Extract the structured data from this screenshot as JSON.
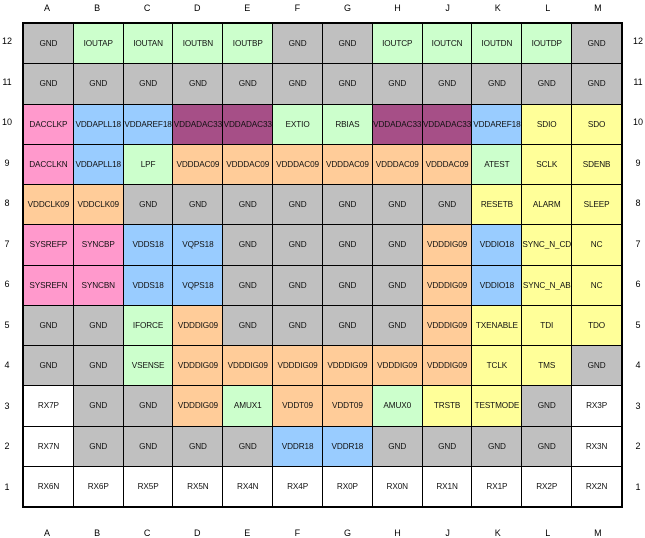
{
  "colors": {
    "gnd": "#c0c0c0",
    "green": "#ccffcc",
    "pink": "#ff99cc",
    "blue": "#99ccff",
    "purple": "#a64f87",
    "orange": "#ffcc99",
    "yellow": "#ffff99",
    "white": "#ffffff"
  },
  "columns": [
    "A",
    "B",
    "C",
    "D",
    "E",
    "F",
    "G",
    "H",
    "J",
    "K",
    "L",
    "M"
  ],
  "rows": [
    {
      "label": "12",
      "cells": [
        [
          "GND",
          "gnd"
        ],
        [
          "IOUTAP",
          "green"
        ],
        [
          "IOUTAN",
          "green"
        ],
        [
          "IOUTBN",
          "green"
        ],
        [
          "IOUTBP",
          "green"
        ],
        [
          "GND",
          "gnd"
        ],
        [
          "GND",
          "gnd"
        ],
        [
          "IOUTCP",
          "green"
        ],
        [
          "IOUTCN",
          "green"
        ],
        [
          "IOUTDN",
          "green"
        ],
        [
          "IOUTDP",
          "green"
        ],
        [
          "GND",
          "gnd"
        ]
      ]
    },
    {
      "label": "11",
      "cells": [
        [
          "GND",
          "gnd"
        ],
        [
          "GND",
          "gnd"
        ],
        [
          "GND",
          "gnd"
        ],
        [
          "GND",
          "gnd"
        ],
        [
          "GND",
          "gnd"
        ],
        [
          "GND",
          "gnd"
        ],
        [
          "GND",
          "gnd"
        ],
        [
          "GND",
          "gnd"
        ],
        [
          "GND",
          "gnd"
        ],
        [
          "GND",
          "gnd"
        ],
        [
          "GND",
          "gnd"
        ],
        [
          "GND",
          "gnd"
        ]
      ]
    },
    {
      "label": "10",
      "cells": [
        [
          "DACCLKP",
          "pink"
        ],
        [
          "VDDAPLL18",
          "blue"
        ],
        [
          "VDDAREF18",
          "blue"
        ],
        [
          "VDDADAC33",
          "purple"
        ],
        [
          "VDDADAC33",
          "purple"
        ],
        [
          "EXTIO",
          "green"
        ],
        [
          "RBIAS",
          "green"
        ],
        [
          "VDDADAC33",
          "purple"
        ],
        [
          "VDDADAC33",
          "purple"
        ],
        [
          "VDDAREF18",
          "blue"
        ],
        [
          "SDIO",
          "yellow"
        ],
        [
          "SDO",
          "yellow"
        ]
      ]
    },
    {
      "label": "9",
      "cells": [
        [
          "DACCLKN",
          "pink"
        ],
        [
          "VDDAPLL18",
          "blue"
        ],
        [
          "LPF",
          "green"
        ],
        [
          "VDDDAC09",
          "orange"
        ],
        [
          "VDDDAC09",
          "orange"
        ],
        [
          "VDDDAC09",
          "orange"
        ],
        [
          "VDDDAC09",
          "orange"
        ],
        [
          "VDDDAC09",
          "orange"
        ],
        [
          "VDDDAC09",
          "orange"
        ],
        [
          "ATEST",
          "green"
        ],
        [
          "SCLK",
          "yellow"
        ],
        [
          "SDENB",
          "yellow"
        ]
      ]
    },
    {
      "label": "8",
      "cells": [
        [
          "VDDCLK09",
          "orange"
        ],
        [
          "VDDCLK09",
          "orange"
        ],
        [
          "GND",
          "gnd"
        ],
        [
          "GND",
          "gnd"
        ],
        [
          "GND",
          "gnd"
        ],
        [
          "GND",
          "gnd"
        ],
        [
          "GND",
          "gnd"
        ],
        [
          "GND",
          "gnd"
        ],
        [
          "GND",
          "gnd"
        ],
        [
          "RESETB",
          "yellow"
        ],
        [
          "ALARM",
          "yellow"
        ],
        [
          "SLEEP",
          "yellow"
        ]
      ]
    },
    {
      "label": "7",
      "cells": [
        [
          "SYSREFP",
          "pink"
        ],
        [
          "SYNCBP",
          "pink"
        ],
        [
          "VDDS18",
          "blue"
        ],
        [
          "VQPS18",
          "blue"
        ],
        [
          "GND",
          "gnd"
        ],
        [
          "GND",
          "gnd"
        ],
        [
          "GND",
          "gnd"
        ],
        [
          "GND",
          "gnd"
        ],
        [
          "VDDDIG09",
          "orange"
        ],
        [
          "VDDIO18",
          "blue"
        ],
        [
          "SYNC_N_CD",
          "yellow"
        ],
        [
          "NC",
          "yellow"
        ]
      ]
    },
    {
      "label": "6",
      "cells": [
        [
          "SYSREFN",
          "pink"
        ],
        [
          "SYNCBN",
          "pink"
        ],
        [
          "VDDS18",
          "blue"
        ],
        [
          "VQPS18",
          "blue"
        ],
        [
          "GND",
          "gnd"
        ],
        [
          "GND",
          "gnd"
        ],
        [
          "GND",
          "gnd"
        ],
        [
          "GND",
          "gnd"
        ],
        [
          "VDDDIG09",
          "orange"
        ],
        [
          "VDDIO18",
          "blue"
        ],
        [
          "SYNC_N_AB",
          "yellow"
        ],
        [
          "NC",
          "yellow"
        ]
      ]
    },
    {
      "label": "5",
      "cells": [
        [
          "GND",
          "gnd"
        ],
        [
          "GND",
          "gnd"
        ],
        [
          "IFORCE",
          "green"
        ],
        [
          "VDDDIG09",
          "orange"
        ],
        [
          "GND",
          "gnd"
        ],
        [
          "GND",
          "gnd"
        ],
        [
          "GND",
          "gnd"
        ],
        [
          "GND",
          "gnd"
        ],
        [
          "VDDDIG09",
          "orange"
        ],
        [
          "TXENABLE",
          "yellow"
        ],
        [
          "TDI",
          "yellow"
        ],
        [
          "TDO",
          "yellow"
        ]
      ]
    },
    {
      "label": "4",
      "cells": [
        [
          "GND",
          "gnd"
        ],
        [
          "GND",
          "gnd"
        ],
        [
          "VSENSE",
          "green"
        ],
        [
          "VDDDIG09",
          "orange"
        ],
        [
          "VDDDIG09",
          "orange"
        ],
        [
          "VDDDIG09",
          "orange"
        ],
        [
          "VDDDIG09",
          "orange"
        ],
        [
          "VDDDIG09",
          "orange"
        ],
        [
          "VDDDIG09",
          "orange"
        ],
        [
          "TCLK",
          "yellow"
        ],
        [
          "TMS",
          "yellow"
        ],
        [
          "GND",
          "gnd"
        ]
      ]
    },
    {
      "label": "3",
      "cells": [
        [
          "RX7P",
          "white"
        ],
        [
          "GND",
          "gnd"
        ],
        [
          "GND",
          "gnd"
        ],
        [
          "VDDDIG09",
          "orange"
        ],
        [
          "AMUX1",
          "green"
        ],
        [
          "VDDT09",
          "orange"
        ],
        [
          "VDDT09",
          "orange"
        ],
        [
          "AMUX0",
          "green"
        ],
        [
          "TRSTB",
          "yellow"
        ],
        [
          "TESTMODE",
          "yellow"
        ],
        [
          "GND",
          "gnd"
        ],
        [
          "RX3P",
          "white"
        ]
      ]
    },
    {
      "label": "2",
      "cells": [
        [
          "RX7N",
          "white"
        ],
        [
          "GND",
          "gnd"
        ],
        [
          "GND",
          "gnd"
        ],
        [
          "GND",
          "gnd"
        ],
        [
          "GND",
          "gnd"
        ],
        [
          "VDDR18",
          "blue"
        ],
        [
          "VDDR18",
          "blue"
        ],
        [
          "GND",
          "gnd"
        ],
        [
          "GND",
          "gnd"
        ],
        [
          "GND",
          "gnd"
        ],
        [
          "GND",
          "gnd"
        ],
        [
          "RX3N",
          "white"
        ]
      ]
    },
    {
      "label": "1",
      "cells": [
        [
          "RX6N",
          "white"
        ],
        [
          "RX6P",
          "white"
        ],
        [
          "RX5P",
          "white"
        ],
        [
          "RX5N",
          "white"
        ],
        [
          "RX4N",
          "white"
        ],
        [
          "RX4P",
          "white"
        ],
        [
          "RX0P",
          "white"
        ],
        [
          "RX0N",
          "white"
        ],
        [
          "RX1N",
          "white"
        ],
        [
          "RX1P",
          "white"
        ],
        [
          "RX2P",
          "white"
        ],
        [
          "RX2N",
          "white"
        ]
      ]
    }
  ]
}
